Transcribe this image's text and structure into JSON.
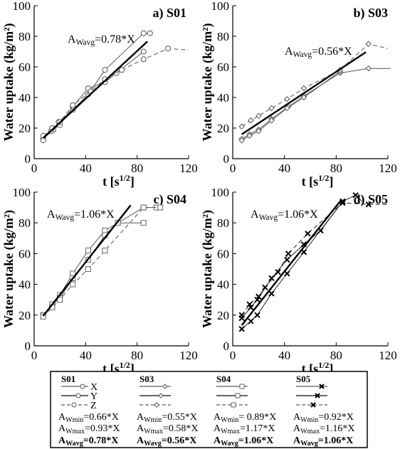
{
  "chart_data": [
    {
      "type": "scatter",
      "panel": "a) S01",
      "title": "a) S01",
      "xlabel": "t [s^{1/2}]",
      "ylabel": "Water uptake (kg/m²)",
      "xlim": [
        0,
        120
      ],
      "ylim": [
        0,
        100
      ],
      "xticks": [
        0,
        40,
        80,
        120
      ],
      "yticks": [
        0,
        20,
        40,
        60,
        80,
        100
      ],
      "annotation": {
        "prefix": "A",
        "sub": "Wavg",
        "rest": "=0.78*X"
      },
      "fit": {
        "slope": 0.78,
        "x": [
          7,
          88
        ]
      },
      "series": [
        {
          "name": "X",
          "style": "solid",
          "marker": "circle",
          "x": [
            7,
            15,
            19,
            30,
            42,
            55,
            85,
            90
          ],
          "y": [
            13,
            19,
            24,
            32,
            42,
            58,
            82,
            82
          ]
        },
        {
          "name": "Y",
          "style": "solid",
          "marker": "circle",
          "x": [
            7,
            13,
            20,
            30,
            42,
            55,
            64,
            85
          ],
          "y": [
            15,
            18,
            22,
            34,
            46,
            50,
            56,
            70
          ]
        },
        {
          "name": "Z",
          "style": "dashed",
          "marker": "circle",
          "x": [
            7,
            14,
            20,
            30,
            44,
            55,
            68,
            85,
            104,
            120
          ],
          "y": [
            12,
            20,
            24,
            35,
            44,
            52,
            58,
            65,
            72,
            71
          ]
        }
      ]
    },
    {
      "type": "scatter",
      "panel": "b) S03",
      "title": "b) S03",
      "xlabel": "t [s^{1/2}]",
      "ylabel": "Water uptake (kg/m²)",
      "xlim": [
        0,
        120
      ],
      "ylim": [
        0,
        100
      ],
      "xticks": [
        0,
        40,
        80,
        120
      ],
      "yticks": [
        0,
        20,
        40,
        60,
        80,
        100
      ],
      "annotation": {
        "prefix": "A",
        "sub": "Wavg",
        "rest": "=0.56*X"
      },
      "fit": {
        "slope": 0.56,
        "x": [
          7,
          103
        ]
      },
      "series": [
        {
          "name": "X",
          "style": "solid",
          "marker": "diamond",
          "x": [
            7,
            13,
            20,
            30,
            43,
            55,
            83,
            105,
            122
          ],
          "y": [
            13,
            16,
            19,
            26,
            34,
            41,
            56,
            59,
            59
          ]
        },
        {
          "name": "Y",
          "style": "solid",
          "marker": "diamond",
          "x": [
            7,
            13,
            20,
            30,
            42,
            55,
            83
          ],
          "y": [
            12,
            15,
            18,
            25,
            33,
            40,
            57
          ]
        },
        {
          "name": "Z",
          "style": "dashed",
          "marker": "diamond",
          "x": [
            7,
            14,
            20,
            30,
            42,
            55,
            83,
            105,
            120
          ],
          "y": [
            21,
            25,
            28,
            33,
            39,
            46,
            58,
            75,
            72
          ]
        }
      ]
    },
    {
      "type": "scatter",
      "panel": "c) S04",
      "title": "c) S04",
      "xlabel": "t [s^{1/2}]",
      "ylabel": "Water uptake (kg/m²)",
      "xlim": [
        0,
        120
      ],
      "ylim": [
        0,
        100
      ],
      "xticks": [
        0,
        40,
        80,
        120
      ],
      "yticks": [
        0,
        20,
        40,
        60,
        80,
        100
      ],
      "annotation": {
        "prefix": "A",
        "sub": "Wavg",
        "rest": "=1.06*X"
      },
      "fit": {
        "slope": 1.06,
        "x": [
          7,
          75
        ]
      },
      "series": [
        {
          "name": "X",
          "style": "solid",
          "marker": "square",
          "x": [
            7,
            14,
            20,
            30,
            42,
            55,
            85,
            95
          ],
          "y": [
            20,
            26,
            33,
            47,
            62,
            75,
            90,
            90
          ]
        },
        {
          "name": "Y",
          "style": "solid",
          "marker": "square",
          "x": [
            7,
            14,
            20,
            30,
            42,
            55,
            65,
            85
          ],
          "y": [
            20,
            27,
            31,
            44,
            56,
            72,
            80,
            80
          ]
        },
        {
          "name": "Z",
          "style": "dashed",
          "marker": "square",
          "x": [
            7,
            14,
            20,
            30,
            42,
            55,
            85,
            98
          ],
          "y": [
            19,
            25,
            30,
            40,
            50,
            62,
            90,
            90
          ]
        }
      ]
    },
    {
      "type": "scatter",
      "panel": "d) S05",
      "title": "d) S05",
      "xlabel": "t [s^{1/2}]",
      "ylabel": "Water uptake (kg/m²)",
      "xlim": [
        0,
        120
      ],
      "ylim": [
        0,
        100
      ],
      "xticks": [
        0,
        40,
        80,
        120
      ],
      "yticks": [
        0,
        20,
        40,
        60,
        80,
        100
      ],
      "annotation": {
        "prefix": "A",
        "sub": "Wavg",
        "rest": "=1.06*X"
      },
      "fit": {
        "slope": 1.06,
        "x": [
          7,
          84
        ]
      },
      "series": [
        {
          "name": "X",
          "style": "solid",
          "marker": "x",
          "x": [
            7,
            14,
            19,
            30,
            42,
            55,
            68,
            85,
            95,
            100
          ],
          "y": [
            18,
            25,
            30,
            44,
            56,
            66,
            75,
            94,
            98,
            94
          ]
        },
        {
          "name": "Y",
          "style": "solid",
          "marker": "x",
          "x": [
            7,
            14,
            19,
            30,
            42,
            55,
            85
          ],
          "y": [
            11,
            16,
            20,
            34,
            47,
            61,
            94
          ]
        },
        {
          "name": "Z",
          "style": "dashed",
          "marker": "x",
          "x": [
            7,
            13,
            20,
            25,
            35,
            43,
            58,
            85,
            105,
            120
          ],
          "y": [
            20,
            27,
            32,
            38,
            48,
            60,
            73,
            93,
            92,
            92
          ]
        }
      ]
    }
  ],
  "legend": {
    "series_labels": [
      "X",
      "Y",
      "Z"
    ],
    "groups": [
      {
        "title": "S01",
        "marker": "circle",
        "min_sub": "Wmin",
        "min_rest": "=0.66*X",
        "max_sub": "Wmax",
        "max_rest": "=0.93*X",
        "avg_sub": "Wavg",
        "avg_rest": "=0.78*X"
      },
      {
        "title": "S03",
        "marker": "diamond",
        "min_sub": "Wmin",
        "min_rest": "=0.55*X",
        "max_sub": "Wmax",
        "max_rest": "=0.58*X",
        "avg_sub": "Wavg",
        "avg_rest": "=0.56*X"
      },
      {
        "title": "S04",
        "marker": "square",
        "min_sub": "Wmin",
        "min_rest": "= 0.89*X",
        "max_sub": "Wmax",
        "max_rest": "=1.17*X",
        "avg_sub": "Wavg",
        "avg_rest": "=1.06*X"
      },
      {
        "title": "S05",
        "marker": "x",
        "min_sub": "Wmin",
        "min_rest": "=0.92*X",
        "max_sub": "Wmax",
        "max_rest": "=1.16*X",
        "avg_sub": "Wavg",
        "avg_rest": "=1.06*X"
      }
    ]
  }
}
